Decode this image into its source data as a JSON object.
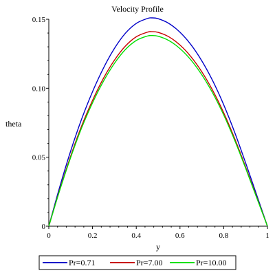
{
  "chart_data": {
    "type": "line",
    "title": "Velocity Profile",
    "xlabel": "y",
    "ylabel": "theta",
    "xlim": [
      0,
      1
    ],
    "ylim": [
      0,
      0.15
    ],
    "x_ticks": [
      0,
      0.2,
      0.4,
      0.6,
      0.8,
      1
    ],
    "x_tick_labels": [
      "0",
      "0.2",
      "0.4",
      "0.6",
      "0.8",
      "1"
    ],
    "y_ticks": [
      0,
      0.05,
      0.1,
      0.15
    ],
    "y_tick_labels": [
      "0",
      "0.05",
      "0.10",
      "0.15"
    ],
    "grid": false,
    "legend_position": "bottom",
    "x": [
      0,
      0.05,
      0.1,
      0.15,
      0.2,
      0.25,
      0.3,
      0.35,
      0.4,
      0.45,
      0.47,
      0.5,
      0.55,
      0.6,
      0.65,
      0.7,
      0.75,
      0.8,
      0.85,
      0.9,
      0.95,
      1.0
    ],
    "series": [
      {
        "name": "Pr=0.71",
        "color": "#0000c8",
        "values": [
          0,
          0.0285,
          0.0545,
          0.0776,
          0.0975,
          0.1146,
          0.1288,
          0.1398,
          0.147,
          0.1505,
          0.151,
          0.1504,
          0.1469,
          0.1406,
          0.1316,
          0.1198,
          0.1053,
          0.088,
          0.0681,
          0.046,
          0.023,
          0
        ]
      },
      {
        "name": "Pr=7.00",
        "color": "#c80000",
        "values": [
          0,
          0.0265,
          0.0508,
          0.0726,
          0.0912,
          0.1072,
          0.1203,
          0.1305,
          0.1373,
          0.1406,
          0.141,
          0.1405,
          0.1372,
          0.1313,
          0.1229,
          0.1119,
          0.0983,
          0.0822,
          0.0636,
          0.043,
          0.0215,
          0
        ]
      },
      {
        "name": "Pr=10.00",
        "color": "#00e000",
        "values": [
          0,
          0.026,
          0.0498,
          0.0712,
          0.0894,
          0.1051,
          0.118,
          0.128,
          0.1346,
          0.1378,
          0.1382,
          0.1377,
          0.1345,
          0.1287,
          0.1205,
          0.1097,
          0.0964,
          0.0806,
          0.0623,
          0.0421,
          0.021,
          0
        ]
      }
    ]
  }
}
